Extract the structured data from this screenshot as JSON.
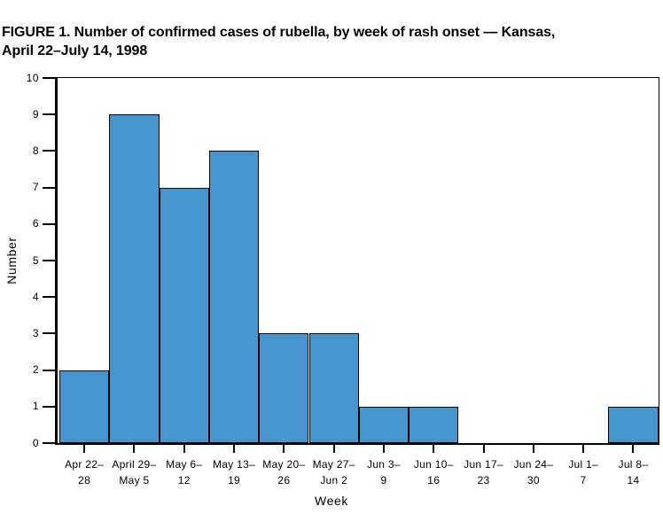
{
  "figure": {
    "title_line1": "FIGURE 1. Number of confirmed cases of rubella, by week of rash onset — Kansas,",
    "title_line2": "April 22–July 14, 1998"
  },
  "chart_data": {
    "type": "bar",
    "title": "FIGURE 1. Number of confirmed cases of rubella, by week of rash onset — Kansas, April 22–July 14, 1998",
    "xlabel": "Week",
    "ylabel": "Number",
    "ylim": [
      0,
      10
    ],
    "yticks": [
      0,
      1,
      2,
      3,
      4,
      5,
      6,
      7,
      8,
      9,
      10
    ],
    "categories": [
      "Apr 22–28",
      "April 29–May 5",
      "May 6–12",
      "May 13–19",
      "May 20–26",
      "May 27–Jun 2",
      "Jun 3–9",
      "Jun 10–16",
      "Jun 17–23",
      "Jun 24–30",
      "Jul 1–7",
      "Jul 8–14"
    ],
    "category_labels": [
      [
        "Apr 22–",
        "28"
      ],
      [
        "April 29–",
        "May 5"
      ],
      [
        "May 6–",
        "12"
      ],
      [
        "May 13–",
        "19"
      ],
      [
        "May 20–",
        "26"
      ],
      [
        "May 27–",
        "Jun 2"
      ],
      [
        "Jun 3–",
        "9"
      ],
      [
        "Jun 10–",
        "16"
      ],
      [
        "Jun 17–",
        "23"
      ],
      [
        "Jun 24–",
        "30"
      ],
      [
        "Jul 1–",
        "7"
      ],
      [
        "Jul 8–",
        "14"
      ]
    ],
    "values": [
      2,
      9,
      7,
      8,
      3,
      3,
      1,
      1,
      0,
      0,
      0,
      1
    ],
    "bar_color": "#4596CE",
    "bar_border_color": "#000000",
    "axis_color": "#000000",
    "grid": false,
    "legend": null
  }
}
